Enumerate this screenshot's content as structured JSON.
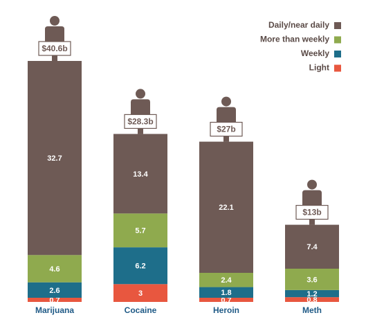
{
  "chart_data": {
    "type": "stacked_bar",
    "categories": [
      "Marijuana",
      "Cocaine",
      "Heroin",
      "Meth"
    ],
    "series": [
      {
        "name": "Light",
        "color": "#e8573f",
        "values": [
          0.7,
          3,
          0.7,
          0.8
        ]
      },
      {
        "name": "Weekly",
        "color": "#1e6e8a",
        "values": [
          2.6,
          6.2,
          1.8,
          1.2
        ]
      },
      {
        "name": "More than weekly",
        "color": "#8faa4e",
        "values": [
          4.6,
          5.7,
          2.4,
          3.6
        ]
      },
      {
        "name": "Daily/near daily",
        "color": "#6e5a55",
        "values": [
          32.7,
          13.4,
          22.1,
          7.4
        ]
      }
    ],
    "totals": {
      "values": [
        40.6,
        28.3,
        27,
        13
      ],
      "value_labels": [
        "$40.6b",
        "$28.3b",
        "$27b",
        "$13b"
      ]
    },
    "legend": "top-right"
  }
}
